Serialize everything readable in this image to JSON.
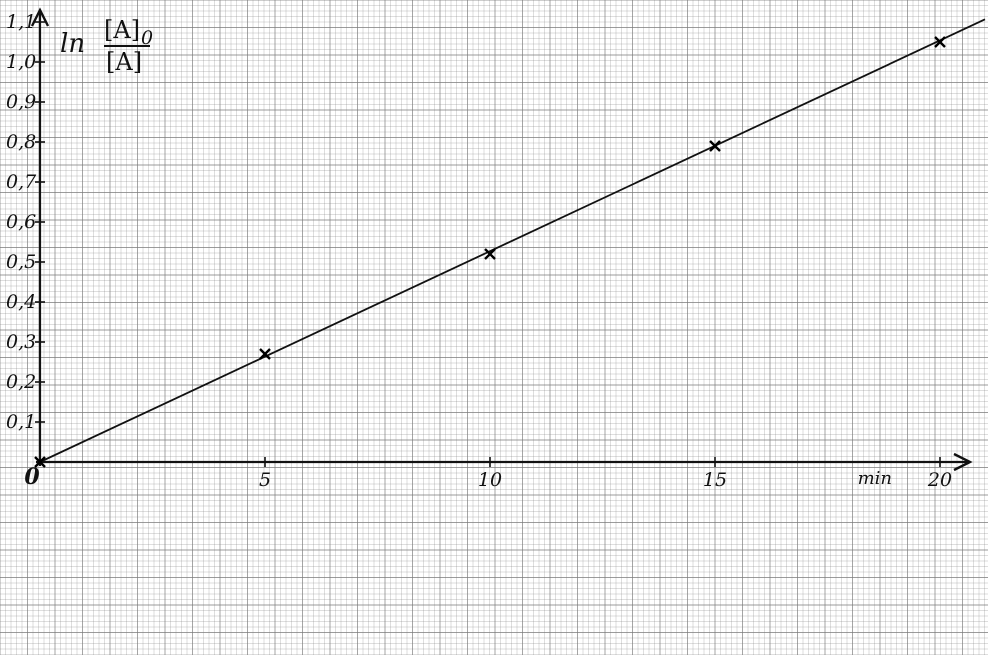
{
  "chart_data": {
    "type": "line",
    "x": [
      0,
      5,
      10,
      15,
      20
    ],
    "series": [
      {
        "values": [
          0,
          0.27,
          0.52,
          0.79,
          1.05
        ],
        "color": "#111111"
      }
    ],
    "fit_line": {
      "slope": 0.0527,
      "intercept": 0
    },
    "xlim": [
      0,
      21
    ],
    "ylim": [
      0,
      1.1
    ],
    "x_ticks": [
      5,
      10,
      15,
      20
    ],
    "x_tick_labels": [
      "5",
      "10",
      "15",
      "20"
    ],
    "y_ticks": [
      0.1,
      0.2,
      0.3,
      0.4,
      0.5,
      0.6,
      0.7,
      0.8,
      0.9,
      1.0,
      1.1
    ],
    "y_tick_labels": [
      "0,1",
      "0,2",
      "0,3",
      "0,4",
      "0,5",
      "0,6",
      "0,7",
      "0,8",
      "0,9",
      "1,0",
      "1,1"
    ],
    "origin_label": "0",
    "ylabel": {
      "prefix": "ln",
      "numerator": "[A]",
      "numerator_subscript": "0",
      "denominator": "[A]"
    },
    "xunit": "min",
    "grid": true,
    "grid_color": "#7a7a7a",
    "paper_color": "#ffffff"
  }
}
